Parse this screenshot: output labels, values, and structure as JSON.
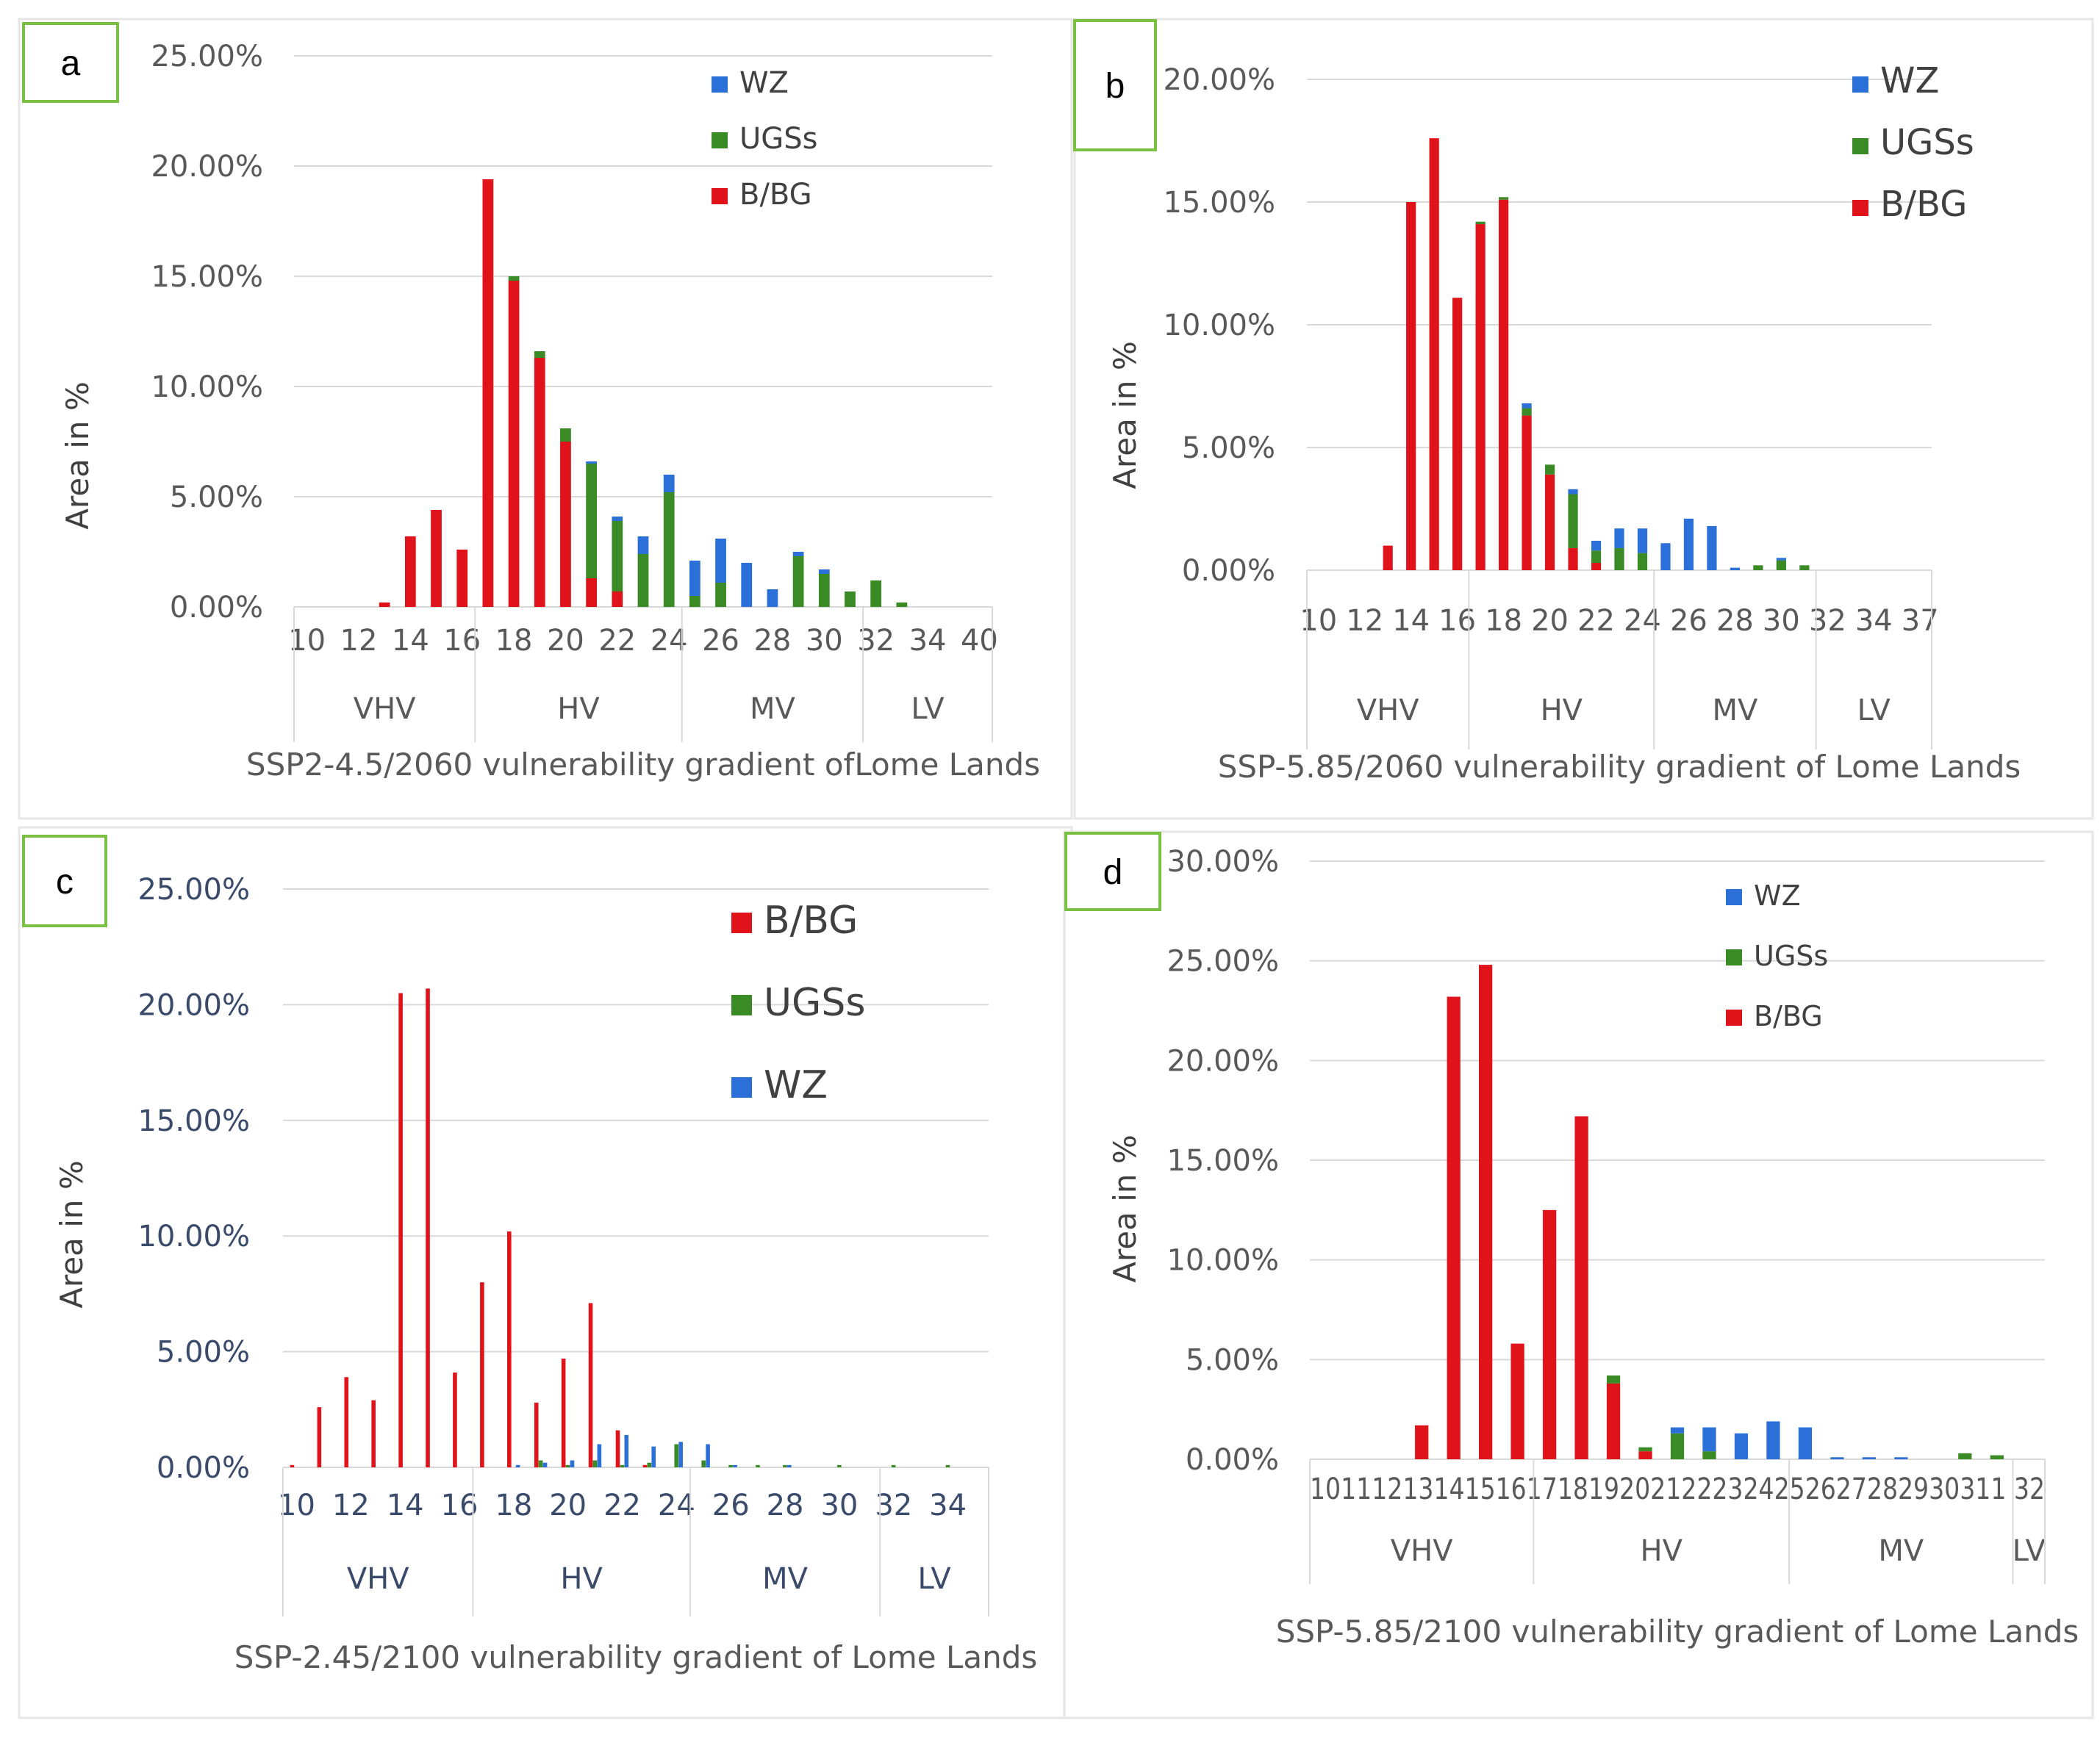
{
  "colors": {
    "B/BG": "#e0131b",
    "UGSs": "#3a8a26",
    "WZ": "#2a70d8",
    "grid": "#d9d9d9",
    "panel_border": "#7ac143"
  },
  "chart_data": [
    {
      "panel": "a",
      "type": "bar",
      "stacked": true,
      "ylabel": "Area in %",
      "xlabel": "SSP2-4.5/2060 vulnerability gradient ofLome Lands",
      "yticks": [
        "0.00%",
        "5.00%",
        "10.00%",
        "15.00%",
        "20.00%",
        "25.00%"
      ],
      "ylim": [
        0,
        25
      ],
      "x_tick_labels": [
        "10",
        "12",
        "14",
        "16",
        "18",
        "20",
        "22",
        "24",
        "26",
        "28",
        "30",
        "32",
        "34",
        "40"
      ],
      "categories": [
        10,
        11,
        12,
        13,
        14,
        15,
        16,
        17,
        18,
        19,
        20,
        21,
        22,
        23,
        24,
        25,
        26,
        27,
        28,
        29,
        30,
        31,
        32,
        33,
        34,
        35,
        40
      ],
      "groups": [
        {
          "label": "VHV",
          "from": 10,
          "to": 16
        },
        {
          "label": "HV",
          "from": 17,
          "to": 24
        },
        {
          "label": "MV",
          "from": 25,
          "to": 31
        },
        {
          "label": "LV",
          "from": 32,
          "to": 40
        }
      ],
      "legend_order": [
        "WZ",
        "UGSs",
        "B/BG"
      ],
      "series": [
        {
          "name": "B/BG",
          "values": [
            0,
            0,
            0,
            0.2,
            3.2,
            4.4,
            2.6,
            19.4,
            14.8,
            11.3,
            7.5,
            1.3,
            0.7,
            0,
            0,
            0,
            0,
            0,
            0,
            0,
            0,
            0,
            0,
            0,
            0,
            0,
            0
          ]
        },
        {
          "name": "UGSs",
          "values": [
            0,
            0,
            0,
            0,
            0,
            0,
            0,
            0,
            0.2,
            0.3,
            0.6,
            5.2,
            3.2,
            2.4,
            5.2,
            0.5,
            1.1,
            0,
            0,
            2.3,
            1.5,
            0.7,
            1.2,
            0.2,
            0,
            0,
            0
          ]
        },
        {
          "name": "WZ",
          "values": [
            0,
            0,
            0,
            0,
            0,
            0,
            0,
            0,
            0,
            0,
            0,
            0.1,
            0.2,
            0.8,
            0.8,
            1.6,
            2.0,
            2.0,
            0.8,
            0.2,
            0.2,
            0,
            0,
            0,
            0,
            0,
            0
          ]
        }
      ]
    },
    {
      "panel": "b",
      "type": "bar",
      "stacked": true,
      "ylabel": "Area in %",
      "xlabel": "SSP-5.85/2060 vulnerability gradient of Lome Lands",
      "yticks": [
        "0.00%",
        "5.00%",
        "10.00%",
        "15.00%",
        "20.00%"
      ],
      "ylim": [
        0,
        20
      ],
      "x_tick_labels": [
        "10",
        "12",
        "14",
        "16",
        "18",
        "20",
        "22",
        "24",
        "26",
        "28",
        "30",
        "32",
        "34",
        "37"
      ],
      "categories": [
        10,
        11,
        12,
        13,
        14,
        15,
        16,
        17,
        18,
        19,
        20,
        21,
        22,
        23,
        24,
        25,
        26,
        27,
        28,
        29,
        30,
        31,
        32,
        33,
        34,
        35,
        37
      ],
      "groups": [
        {
          "label": "VHV",
          "from": 10,
          "to": 16
        },
        {
          "label": "HV",
          "from": 17,
          "to": 24
        },
        {
          "label": "MV",
          "from": 25,
          "to": 31
        },
        {
          "label": "LV",
          "from": 32,
          "to": 37
        }
      ],
      "legend_order": [
        "WZ",
        "UGSs",
        "B/BG"
      ],
      "series": [
        {
          "name": "B/BG",
          "values": [
            0,
            0,
            0,
            1.0,
            15.0,
            17.6,
            11.1,
            14.1,
            15.1,
            6.3,
            3.9,
            0.9,
            0.3,
            0,
            0,
            0,
            0,
            0,
            0,
            0,
            0,
            0,
            0,
            0,
            0,
            0,
            0
          ]
        },
        {
          "name": "UGSs",
          "values": [
            0,
            0,
            0,
            0,
            0,
            0,
            0,
            0.1,
            0.1,
            0.3,
            0.4,
            2.2,
            0.5,
            0.9,
            0.7,
            0,
            0,
            0,
            0,
            0.2,
            0.4,
            0.2,
            0,
            0,
            0,
            0,
            0
          ]
        },
        {
          "name": "WZ",
          "values": [
            0,
            0,
            0,
            0,
            0,
            0,
            0,
            0,
            0,
            0.2,
            0,
            0.2,
            0.4,
            0.8,
            1.0,
            1.1,
            2.1,
            1.8,
            0.1,
            0,
            0.1,
            0,
            0,
            0,
            0,
            0,
            0
          ]
        }
      ]
    },
    {
      "panel": "c",
      "type": "bar",
      "stacked": false,
      "ylabel": "Area in %",
      "xlabel": "SSP-2.45/2100 vulnerability gradient of Lome Lands",
      "yticks": [
        "0.00%",
        "5.00%",
        "10.00%",
        "15.00%",
        "20.00%",
        "25.00%"
      ],
      "ylim": [
        0,
        25
      ],
      "x_tick_labels": [
        "10",
        "12",
        "14",
        "16",
        "18",
        "20",
        "22",
        "24",
        "26",
        "28",
        "30",
        "32",
        "34"
      ],
      "categories": [
        10,
        11,
        12,
        13,
        14,
        15,
        16,
        17,
        18,
        19,
        20,
        21,
        22,
        23,
        24,
        25,
        26,
        27,
        28,
        29,
        30,
        31,
        32,
        33,
        34,
        35
      ],
      "groups": [
        {
          "label": "VHV",
          "from": 10,
          "to": 16
        },
        {
          "label": "HV",
          "from": 17,
          "to": 24
        },
        {
          "label": "MV",
          "from": 25,
          "to": 31
        },
        {
          "label": "LV",
          "from": 32,
          "to": 35
        }
      ],
      "legend_order": [
        "B/BG",
        "UGSs",
        "WZ"
      ],
      "series": [
        {
          "name": "B/BG",
          "values": [
            0.1,
            2.6,
            3.9,
            2.9,
            20.5,
            20.7,
            4.1,
            8.0,
            10.2,
            2.8,
            4.7,
            7.1,
            1.6,
            0.1,
            0,
            0,
            0,
            0,
            0,
            0,
            0,
            0,
            0,
            0,
            0,
            0
          ]
        },
        {
          "name": "UGSs",
          "values": [
            0,
            0,
            0,
            0,
            0,
            0,
            0,
            0,
            0,
            0.3,
            0.1,
            0.3,
            0.1,
            0.2,
            1.0,
            0.3,
            0.1,
            0.1,
            0.1,
            0,
            0.1,
            0,
            0.1,
            0,
            0.1,
            0
          ]
        },
        {
          "name": "WZ",
          "values": [
            0,
            0,
            0,
            0,
            0,
            0,
            0,
            0,
            0.1,
            0.2,
            0.3,
            1.0,
            1.4,
            0.9,
            1.1,
            1.0,
            0.1,
            0,
            0.1,
            0,
            0,
            0,
            0,
            0,
            0,
            0
          ]
        }
      ]
    },
    {
      "panel": "d",
      "type": "bar",
      "stacked": true,
      "ylabel": "Area in %",
      "xlabel": "SSP-5.85/2100 vulnerability gradient of Lome Lands",
      "yticks": [
        "0.00%",
        "5.00%",
        "10.00%",
        "15.00%",
        "20.00%",
        "25.00%",
        "30.00%"
      ],
      "ylim": [
        0,
        30
      ],
      "x_tick_label_row": "101112131415161718192021222324252627282930311 32",
      "categories": [
        10,
        11,
        12,
        13,
        14,
        15,
        16,
        17,
        18,
        19,
        20,
        21,
        22,
        23,
        24,
        25,
        26,
        27,
        28,
        29,
        30,
        31,
        32
      ],
      "groups": [
        {
          "label": "VHV",
          "from": 10,
          "to": 16
        },
        {
          "label": "HV",
          "from": 17,
          "to": 24
        },
        {
          "label": "MV",
          "from": 25,
          "to": 31
        },
        {
          "label": "LV",
          "from": 32,
          "to": 32
        }
      ],
      "legend_order": [
        "WZ",
        "UGSs",
        "B/BG"
      ],
      "series": [
        {
          "name": "B/BG",
          "values": [
            0,
            0,
            0,
            1.7,
            23.2,
            24.8,
            5.8,
            12.5,
            17.2,
            3.8,
            0.4,
            0,
            0,
            0,
            0,
            0,
            0,
            0,
            0,
            0,
            0,
            0,
            0
          ]
        },
        {
          "name": "UGSs",
          "values": [
            0,
            0,
            0,
            0,
            0,
            0,
            0,
            0,
            0,
            0.4,
            0.2,
            1.3,
            0.4,
            0,
            0,
            0,
            0,
            0,
            0,
            0,
            0.3,
            0.2,
            0
          ]
        },
        {
          "name": "WZ",
          "values": [
            0,
            0,
            0,
            0,
            0,
            0,
            0,
            0,
            0,
            0,
            0,
            0.3,
            1.2,
            1.3,
            1.9,
            1.6,
            0.1,
            0.1,
            0.1,
            0,
            0,
            0,
            0
          ]
        }
      ]
    }
  ],
  "panels": [
    {
      "label": "a"
    },
    {
      "label": "b"
    },
    {
      "label": "c"
    },
    {
      "label": "d"
    }
  ]
}
